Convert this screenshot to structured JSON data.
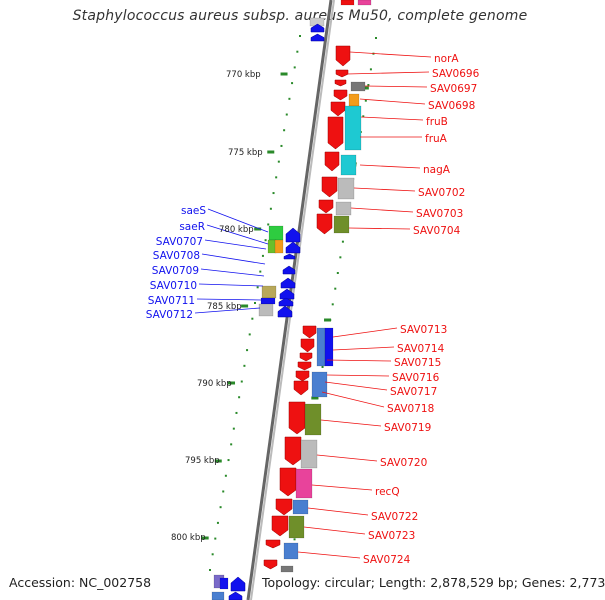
{
  "title": "Staphylococcus aureus subsp. aureus Mu50, complete genome",
  "accession": "Accession: NC_002758",
  "summary": "Topology: circular; Length: 2,878,529 bp; Genes: 2,773",
  "position_labels": [
    "770 kbp",
    "775 kbp",
    "780 kbp",
    "785 kbp",
    "790 kbp",
    "795 kbp",
    "800 kbp"
  ],
  "colors": {
    "forward_strand_genes": "#ee1111",
    "reverse_strand_genes": "#1111ee",
    "backbone": "#999999",
    "tick_marks": "#2a8a2a"
  },
  "forward_labels": [
    "norA",
    "SAV0696",
    "SAV0697",
    "SAV0698",
    "fruB",
    "fruA",
    "nagA",
    "SAV0702",
    "SAV0703",
    "SAV0704",
    "SAV0713",
    "SAV0714",
    "SAV0715",
    "SAV0716",
    "SAV0717",
    "SAV0718",
    "SAV0719",
    "SAV0720",
    "recQ",
    "SAV0722",
    "SAV0723",
    "SAV0724"
  ],
  "reverse_labels": [
    "saeS",
    "saeR",
    "SAV0707",
    "SAV0708",
    "SAV0709",
    "SAV0710",
    "SAV0711",
    "SAV0712"
  ]
}
